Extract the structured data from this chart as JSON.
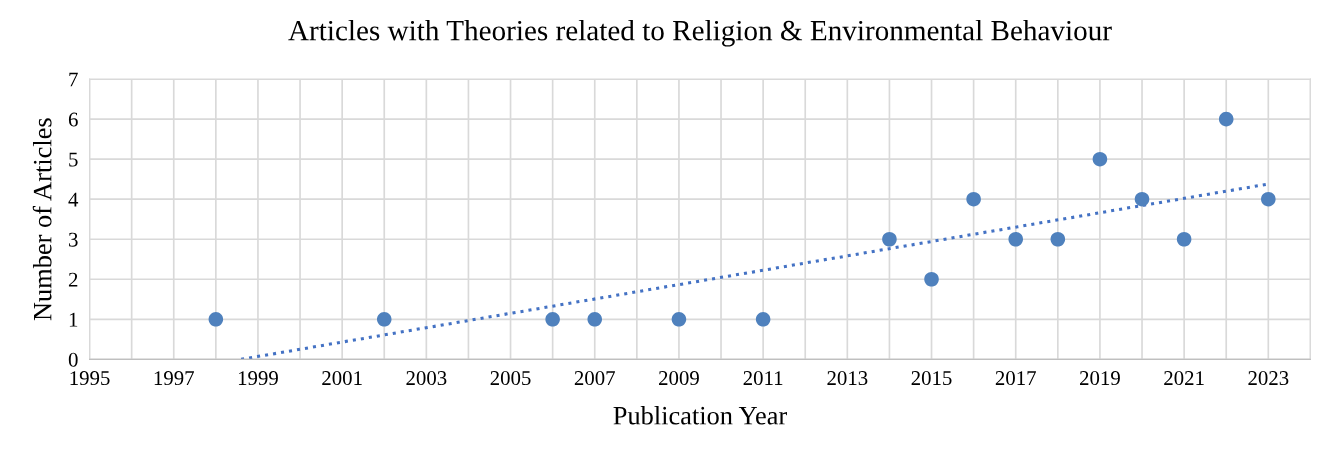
{
  "chart_data": {
    "type": "scatter",
    "title": "Articles with Theories related to Religion & Environmental Behaviour",
    "xlabel": "Publication Year",
    "ylabel": "Number of Articles",
    "series": [
      {
        "color": "#4f81bd",
        "marker": "circle",
        "x": [
          1998,
          2002,
          2006,
          2007,
          2009,
          2011,
          2014,
          2015,
          2016,
          2017,
          2018,
          2019,
          2020,
          2021,
          2022,
          2023
        ],
        "values": [
          1,
          1,
          1,
          1,
          1,
          1,
          3,
          2,
          4,
          3,
          3,
          5,
          4,
          3,
          6,
          4
        ]
      },
      {
        "type": "line",
        "color": "#4472c4",
        "line_style": "dotted",
        "marker": "none",
        "x": [
          1998.6,
          2023
        ],
        "values": [
          0,
          4.38
        ]
      }
    ],
    "xlim": [
      1995,
      2024
    ],
    "xticks": [
      1995,
      {
        "value": 1996,
        "label": null
      },
      1997,
      {
        "value": 1998,
        "label": null
      },
      1999,
      {
        "value": 2000,
        "label": null
      },
      2001,
      {
        "value": 2002,
        "label": null
      },
      2003,
      {
        "value": 2004,
        "label": null
      },
      2005,
      {
        "value": 2006,
        "label": null
      },
      2007,
      {
        "value": 2008,
        "label": null
      },
      2009,
      {
        "value": 2010,
        "label": null
      },
      2011,
      {
        "value": 2012,
        "label": null
      },
      2013,
      {
        "value": 2014,
        "label": null
      },
      2015,
      {
        "value": 2016,
        "label": null
      },
      2017,
      {
        "value": 2018,
        "label": null
      },
      2019,
      {
        "value": 2020,
        "label": null
      },
      2021,
      {
        "value": 2022,
        "label": null
      },
      2023,
      {
        "value": 2024,
        "label": null
      }
    ],
    "ylim": [
      0,
      7
    ],
    "yticks": [
      0,
      1,
      2,
      3,
      4,
      5,
      6,
      7
    ],
    "grid": true
  }
}
